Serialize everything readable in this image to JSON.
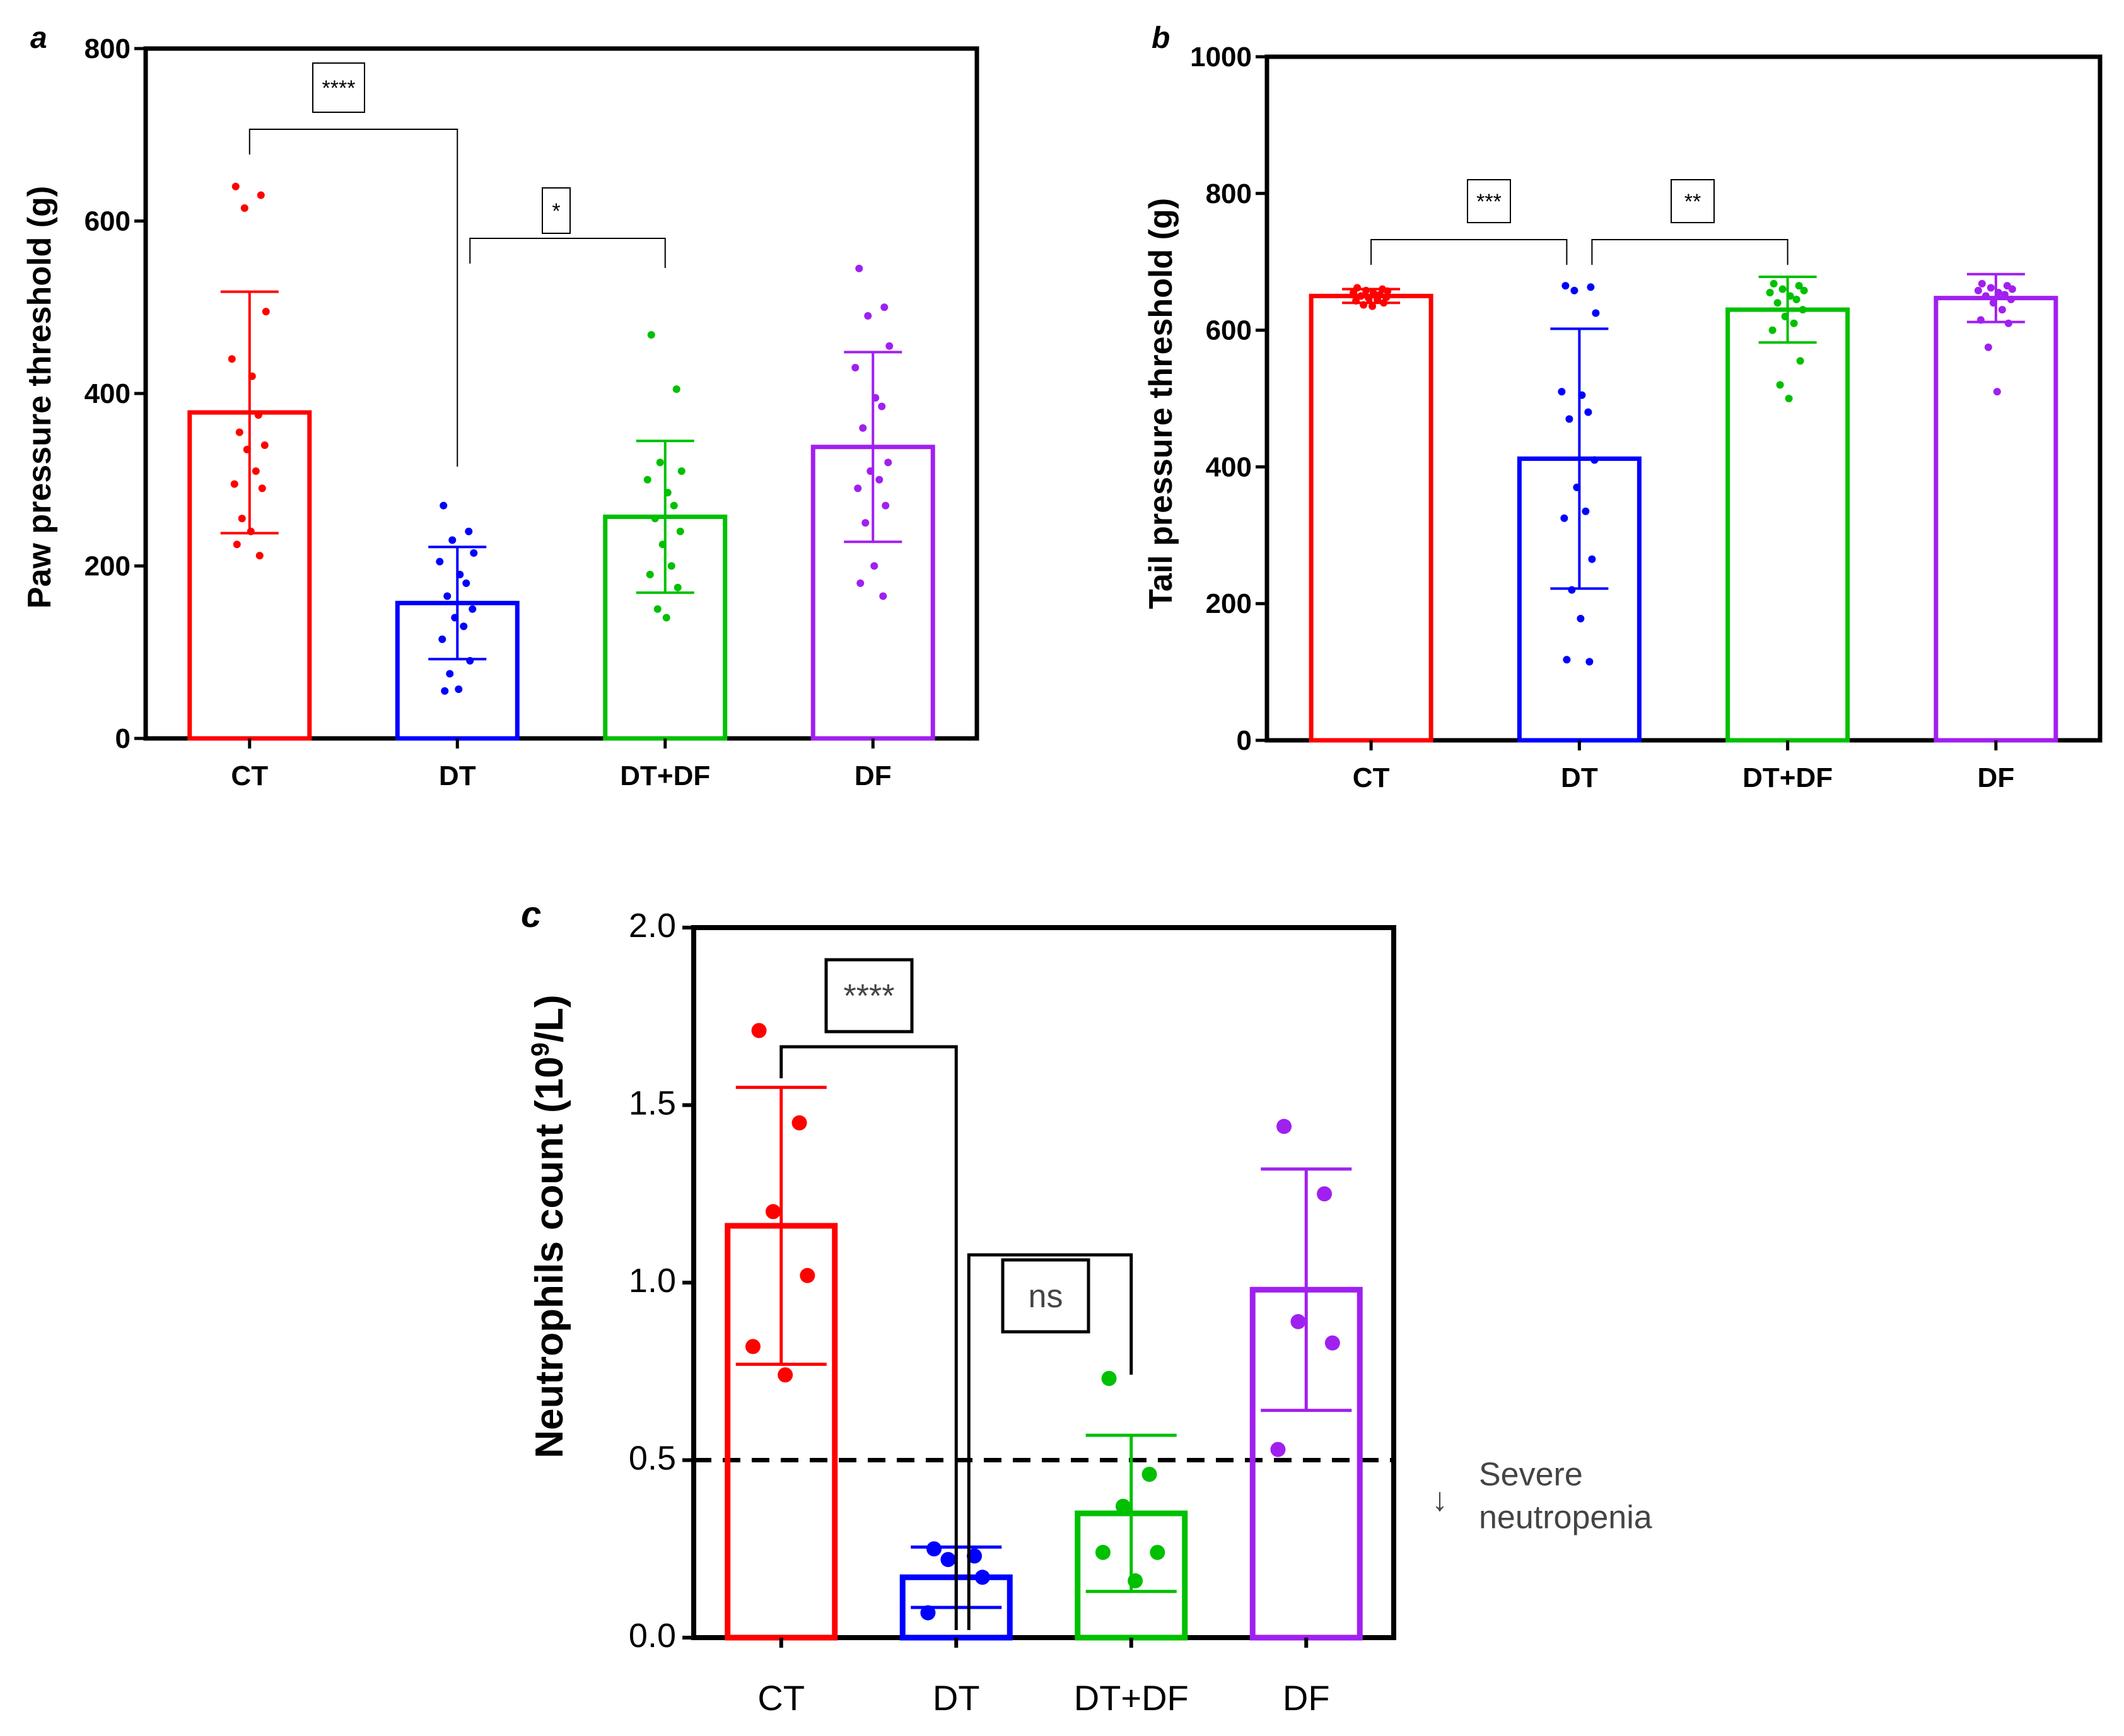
{
  "chart_data": [
    {
      "id": "a",
      "type": "bar",
      "panel_label": "a",
      "title": "",
      "xlabel": "",
      "ylabel": "Paw pressure threshold (g)",
      "ylim": [
        0,
        800
      ],
      "yticks": [
        0,
        200,
        400,
        600,
        800
      ],
      "grid": false,
      "categories": [
        "CT",
        "DT",
        "DT+DF",
        "DF"
      ],
      "colors": [
        "#ff0000",
        "#0000ff",
        "#00c000",
        "#a020f0"
      ],
      "means": [
        378,
        157,
        257,
        338
      ],
      "sd": [
        140,
        65,
        88,
        110
      ],
      "points": [
        [
          640,
          630,
          615,
          495,
          440,
          420,
          375,
          355,
          340,
          335,
          310,
          295,
          290,
          255,
          240,
          225,
          212
        ],
        [
          270,
          240,
          230,
          215,
          205,
          190,
          180,
          165,
          150,
          140,
          130,
          115,
          90,
          75,
          57,
          55
        ],
        [
          468,
          405,
          320,
          310,
          300,
          285,
          270,
          255,
          240,
          225,
          200,
          190,
          175,
          150,
          140
        ],
        [
          545,
          500,
          490,
          455,
          430,
          395,
          385,
          360,
          320,
          310,
          300,
          290,
          270,
          250,
          200,
          180,
          165
        ]
      ],
      "comparisons": [
        {
          "from": 0,
          "to": 1,
          "label": "****"
        },
        {
          "from": 1,
          "to": 2,
          "label": "*"
        }
      ]
    },
    {
      "id": "b",
      "type": "bar",
      "panel_label": "b",
      "title": "",
      "xlabel": "",
      "ylabel": "Tail pressure threshold (g)",
      "ylim": [
        0,
        1000
      ],
      "yticks": [
        0,
        200,
        400,
        600,
        800,
        1000
      ],
      "grid": false,
      "categories": [
        "CT",
        "DT",
        "DT+DF",
        "DF"
      ],
      "colors": [
        "#ff0000",
        "#0000ff",
        "#00c000",
        "#a020f0"
      ],
      "means": [
        650,
        412,
        630,
        647
      ],
      "sd": [
        10,
        190,
        48,
        35
      ],
      "points": [
        [
          662,
          660,
          658,
          657,
          655,
          654,
          652,
          650,
          648,
          647,
          645,
          643,
          640,
          637,
          635
        ],
        [
          665,
          663,
          658,
          625,
          510,
          505,
          480,
          470,
          410,
          370,
          335,
          325,
          265,
          220,
          178,
          118,
          115
        ],
        [
          668,
          665,
          660,
          658,
          655,
          650,
          645,
          640,
          630,
          620,
          610,
          600,
          555,
          520,
          500
        ],
        [
          668,
          665,
          662,
          660,
          658,
          655,
          652,
          650,
          645,
          640,
          630,
          615,
          610,
          575,
          510
        ]
      ],
      "comparisons": [
        {
          "from": 0,
          "to": 1,
          "label": "***"
        },
        {
          "from": 1,
          "to": 2,
          "label": "**"
        }
      ]
    },
    {
      "id": "c",
      "type": "bar",
      "panel_label": "c",
      "title": "",
      "xlabel": "",
      "ylabel": "Neutrophils count (10",
      "ylabel_sup": "9",
      "ylabel_tail": "/L)",
      "ylim": [
        0,
        2.0
      ],
      "yticks": [
        0.0,
        0.5,
        1.0,
        1.5,
        2.0
      ],
      "ytick_labels": [
        "0.0",
        "0.5",
        "1.0",
        "1.5",
        "2.0"
      ],
      "grid": false,
      "categories": [
        "CT",
        "DT",
        "DT+DF",
        "DF"
      ],
      "colors": [
        "#ff0000",
        "#0000ff",
        "#00c000",
        "#a020f0"
      ],
      "means": [
        1.16,
        0.17,
        0.35,
        0.98
      ],
      "sd": [
        0.39,
        0.085,
        0.22,
        0.34
      ],
      "points": [
        [
          1.71,
          1.45,
          1.2,
          1.02,
          0.82,
          0.74
        ],
        [
          0.25,
          0.23,
          0.22,
          0.17,
          0.07
        ],
        [
          0.73,
          0.46,
          0.37,
          0.24,
          0.24,
          0.16
        ],
        [
          1.44,
          1.25,
          0.89,
          0.83,
          0.53
        ]
      ],
      "comparisons": [
        {
          "from": 0,
          "to": 1,
          "label": "****"
        },
        {
          "from": 1,
          "to": 2,
          "label": "ns"
        }
      ],
      "threshold": {
        "value": 0.5,
        "note_line1": "Severe",
        "note_line2": "neutropenia",
        "arrow": "↓"
      }
    }
  ]
}
